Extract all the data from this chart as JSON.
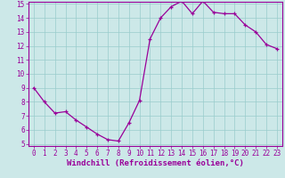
{
  "hours": [
    0,
    1,
    2,
    3,
    4,
    5,
    6,
    7,
    8,
    9,
    10,
    11,
    12,
    13,
    14,
    15,
    16,
    17,
    18,
    19,
    20,
    21,
    22,
    23
  ],
  "values": [
    9.0,
    8.0,
    7.2,
    7.3,
    6.7,
    6.2,
    5.7,
    5.3,
    5.2,
    6.5,
    8.1,
    12.5,
    14.0,
    14.8,
    15.2,
    14.3,
    15.2,
    14.4,
    14.3,
    14.3,
    13.5,
    13.0,
    12.1,
    11.8
  ],
  "line_color": "#990099",
  "marker": "+",
  "marker_size": 3,
  "linewidth": 0.9,
  "markeredgewidth": 0.9,
  "xlabel": "Windchill (Refroidissement éolien,°C)",
  "xlabel_fontsize": 6.5,
  "xlabel_color": "#990099",
  "background_color": "#cce8e8",
  "grid_color": "#99cccc",
  "tick_color": "#990099",
  "ylim": [
    5,
    15
  ],
  "xlim": [
    -0.5,
    23.5
  ],
  "yticks": [
    5,
    6,
    7,
    8,
    9,
    10,
    11,
    12,
    13,
    14,
    15
  ],
  "xticks": [
    0,
    1,
    2,
    3,
    4,
    5,
    6,
    7,
    8,
    9,
    10,
    11,
    12,
    13,
    14,
    15,
    16,
    17,
    18,
    19,
    20,
    21,
    22,
    23
  ],
  "tick_fontsize": 5.5,
  "spine_color": "#990099"
}
